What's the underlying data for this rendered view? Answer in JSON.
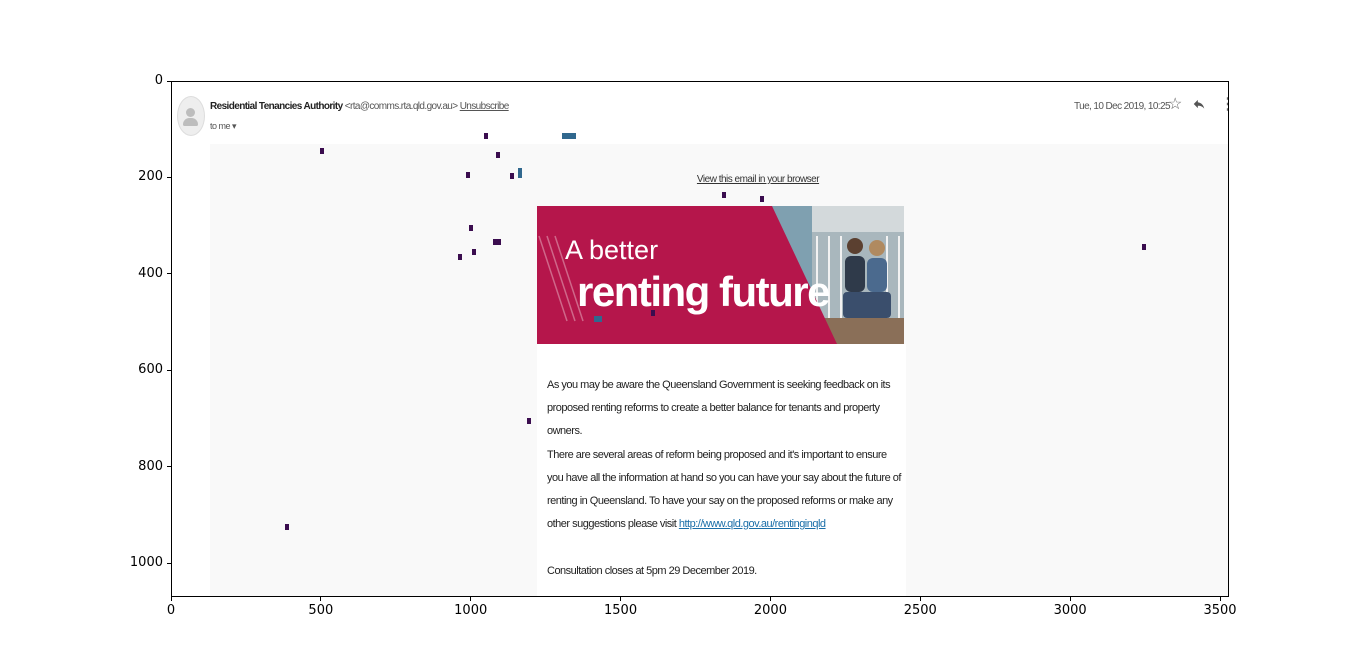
{
  "axes": {
    "x_ticks": [
      "0",
      "500",
      "1000",
      "1500",
      "2000",
      "2500",
      "3000",
      "3500"
    ],
    "y_ticks": [
      "0",
      "200",
      "400",
      "600",
      "800",
      "1000"
    ]
  },
  "email": {
    "sender_name": "Residential Tenancies Authority",
    "sender_email": "<rta@comms.rta.qld.gov.au>",
    "unsubscribe": "Unsubscribe",
    "to": "to me",
    "date": "Tue, 10 Dec 2019, 10:25",
    "view_in_browser": "View this email in your browser",
    "banner": {
      "line1": "A better",
      "line2": "renting future",
      "color": "#b5164b"
    },
    "paragraph1": "As you may be aware the Queensland Government is seeking feedback on its proposed renting reforms to create a better balance for tenants and property owners.",
    "paragraph2_text": "There are several areas of reform being proposed and it's important to ensure you have all the information at hand so you can have your say about the future of renting in Queensland. To have your say on the proposed reforms or make any other suggestions please visit ",
    "paragraph2_link": "http://www.qld.gov.au/rentinginqld",
    "paragraph3": "Consultation closes at 5pm 29 December 2019."
  },
  "icons": [
    "star-icon",
    "reply-icon",
    "more-vert-icon",
    "avatar-icon"
  ]
}
